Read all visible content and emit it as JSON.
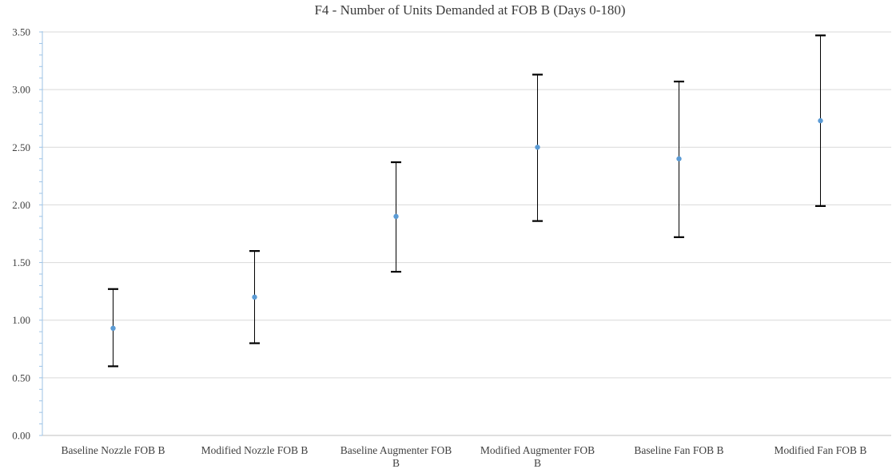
{
  "chart_data": {
    "type": "scatter",
    "title": "F4 - Number of Units Demanded at FOB B (Days 0-180)",
    "xlabel": "",
    "ylabel": "",
    "ylim": [
      0,
      3.5
    ],
    "yticks": [
      "0.00",
      "0.50",
      "1.00",
      "1.50",
      "2.00",
      "2.50",
      "3.00",
      "3.50"
    ],
    "grid": true,
    "legend": "none",
    "categories": [
      [
        "Baseline Nozzle FOB B"
      ],
      [
        "Modified Nozzle FOB B"
      ],
      [
        "Baseline Augmenter FOB",
        "B"
      ],
      [
        "Modified Augmenter FOB",
        "B"
      ],
      [
        "Baseline Fan FOB B"
      ],
      [
        "Modified Fan FOB B"
      ]
    ],
    "points": [
      {
        "value": 0.93,
        "low": 0.6,
        "high": 1.27
      },
      {
        "value": 1.2,
        "low": 0.8,
        "high": 1.6
      },
      {
        "value": 1.9,
        "low": 1.42,
        "high": 2.37
      },
      {
        "value": 2.5,
        "low": 1.86,
        "high": 3.13
      },
      {
        "value": 2.4,
        "low": 1.72,
        "high": 3.07
      },
      {
        "value": 2.73,
        "low": 1.99,
        "high": 3.47
      }
    ],
    "colors": {
      "marker": "#5b9bd5",
      "errorbar": "#000000",
      "grid": "#d9d9d9",
      "axis": "#9dc3e6",
      "text": "#404040"
    }
  }
}
